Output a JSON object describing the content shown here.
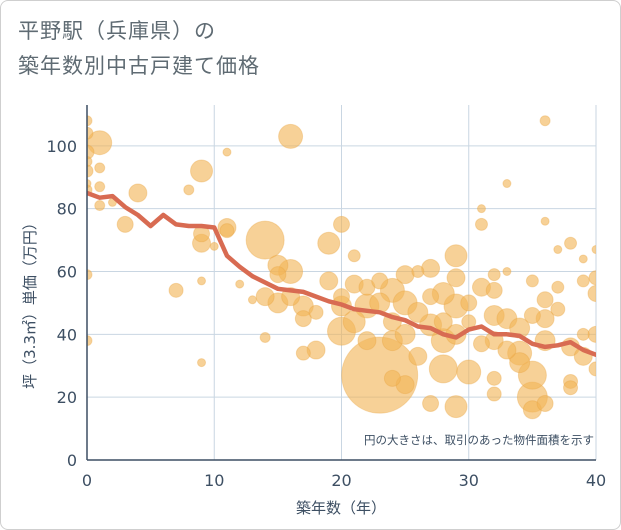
{
  "title_line1": "平野駅（兵庫県）の",
  "title_line2": "築年数別中古戸建て価格",
  "chart_data": {
    "type": "scatter",
    "title": "平野駅（兵庫県）の築年数別中古戸建て価格",
    "xlabel": "築年数（年）",
    "ylabel": "坪（3.3㎡）単価（万円）",
    "xlim": [
      0,
      40
    ],
    "ylim": [
      0,
      113
    ],
    "xticks": [
      0,
      10,
      20,
      30,
      40
    ],
    "yticks": [
      0,
      20,
      40,
      60,
      80,
      100
    ],
    "annotation": "円の大きさは、取引のあった物件面積を示す",
    "colors": {
      "bubble": "#f2b457",
      "trend": "#d86b52",
      "axis": "#3d4f63",
      "grid": "#c9d6e2"
    },
    "trend": {
      "x": [
        0,
        1,
        2,
        3,
        4,
        5,
        6,
        7,
        8,
        9,
        10,
        11,
        12,
        13,
        14,
        15,
        16,
        17,
        18,
        19,
        20,
        21,
        22,
        23,
        24,
        25,
        26,
        27,
        28,
        29,
        30,
        31,
        32,
        33,
        34,
        35,
        36,
        37,
        38,
        39,
        40
      ],
      "y": [
        85,
        83.5,
        84,
        80.5,
        78,
        74.5,
        78,
        75,
        74.5,
        74.5,
        74,
        65,
        61.5,
        58.5,
        56.5,
        54.5,
        54,
        53.5,
        52,
        50.5,
        49.5,
        48,
        47.5,
        47,
        45.5,
        44.5,
        42.5,
        42,
        40,
        39,
        41.5,
        42.5,
        40,
        40,
        39.5,
        37,
        36,
        36.5,
        37.5,
        35,
        33.5
      ]
    },
    "points": [
      {
        "x": 0,
        "y": 108,
        "r": 5
      },
      {
        "x": 0,
        "y": 104,
        "r": 6
      },
      {
        "x": 0,
        "y": 98,
        "r": 7
      },
      {
        "x": 0,
        "y": 95,
        "r": 5
      },
      {
        "x": 0,
        "y": 92,
        "r": 6
      },
      {
        "x": 0,
        "y": 88,
        "r": 4
      },
      {
        "x": 0,
        "y": 86,
        "r": 5
      },
      {
        "x": 0,
        "y": 59,
        "r": 5
      },
      {
        "x": 0,
        "y": 38,
        "r": 5
      },
      {
        "x": 1,
        "y": 101,
        "r": 12
      },
      {
        "x": 1,
        "y": 93,
        "r": 5
      },
      {
        "x": 1,
        "y": 87,
        "r": 5
      },
      {
        "x": 1,
        "y": 81,
        "r": 5
      },
      {
        "x": 2,
        "y": 82,
        "r": 4
      },
      {
        "x": 3,
        "y": 75,
        "r": 8
      },
      {
        "x": 4,
        "y": 85,
        "r": 9
      },
      {
        "x": 7,
        "y": 54,
        "r": 7
      },
      {
        "x": 8,
        "y": 86,
        "r": 5
      },
      {
        "x": 9,
        "y": 92,
        "r": 11
      },
      {
        "x": 9,
        "y": 72,
        "r": 8
      },
      {
        "x": 9,
        "y": 69,
        "r": 9
      },
      {
        "x": 9,
        "y": 57,
        "r": 4
      },
      {
        "x": 9,
        "y": 31,
        "r": 4
      },
      {
        "x": 10,
        "y": 68,
        "r": 4
      },
      {
        "x": 11,
        "y": 98,
        "r": 4
      },
      {
        "x": 11,
        "y": 74,
        "r": 9
      },
      {
        "x": 11,
        "y": 73,
        "r": 7
      },
      {
        "x": 12,
        "y": 56,
        "r": 4
      },
      {
        "x": 13,
        "y": 51,
        "r": 4
      },
      {
        "x": 14,
        "y": 70,
        "r": 19
      },
      {
        "x": 14,
        "y": 52,
        "r": 9
      },
      {
        "x": 14,
        "y": 39,
        "r": 5
      },
      {
        "x": 15,
        "y": 62,
        "r": 10
      },
      {
        "x": 15,
        "y": 59,
        "r": 8
      },
      {
        "x": 15,
        "y": 50,
        "r": 10
      },
      {
        "x": 16,
        "y": 103,
        "r": 12
      },
      {
        "x": 16,
        "y": 60,
        "r": 12
      },
      {
        "x": 16,
        "y": 52,
        "r": 9
      },
      {
        "x": 17,
        "y": 49,
        "r": 10
      },
      {
        "x": 17,
        "y": 45,
        "r": 8
      },
      {
        "x": 17,
        "y": 34,
        "r": 7
      },
      {
        "x": 18,
        "y": 47,
        "r": 7
      },
      {
        "x": 18,
        "y": 35,
        "r": 9
      },
      {
        "x": 19,
        "y": 69,
        "r": 11
      },
      {
        "x": 19,
        "y": 57,
        "r": 9
      },
      {
        "x": 20,
        "y": 75,
        "r": 8
      },
      {
        "x": 20,
        "y": 52,
        "r": 8
      },
      {
        "x": 20,
        "y": 49,
        "r": 10
      },
      {
        "x": 20,
        "y": 41,
        "r": 14
      },
      {
        "x": 21,
        "y": 65,
        "r": 6
      },
      {
        "x": 21,
        "y": 56,
        "r": 9
      },
      {
        "x": 21,
        "y": 44,
        "r": 11
      },
      {
        "x": 22,
        "y": 55,
        "r": 8
      },
      {
        "x": 22,
        "y": 49,
        "r": 12
      },
      {
        "x": 22,
        "y": 38,
        "r": 9
      },
      {
        "x": 23,
        "y": 27,
        "r": 38
      },
      {
        "x": 23,
        "y": 57,
        "r": 8
      },
      {
        "x": 23,
        "y": 50,
        "r": 10
      },
      {
        "x": 24,
        "y": 54,
        "r": 12
      },
      {
        "x": 24,
        "y": 44,
        "r": 9
      },
      {
        "x": 24,
        "y": 38,
        "r": 10
      },
      {
        "x": 24,
        "y": 26,
        "r": 8
      },
      {
        "x": 25,
        "y": 59,
        "r": 9
      },
      {
        "x": 25,
        "y": 50,
        "r": 12
      },
      {
        "x": 25,
        "y": 40,
        "r": 10
      },
      {
        "x": 25,
        "y": 24,
        "r": 9
      },
      {
        "x": 26,
        "y": 60,
        "r": 6
      },
      {
        "x": 26,
        "y": 47,
        "r": 10
      },
      {
        "x": 26,
        "y": 33,
        "r": 9
      },
      {
        "x": 27,
        "y": 61,
        "r": 9
      },
      {
        "x": 27,
        "y": 52,
        "r": 8
      },
      {
        "x": 27,
        "y": 43,
        "r": 11
      },
      {
        "x": 27,
        "y": 18,
        "r": 8
      },
      {
        "x": 28,
        "y": 53,
        "r": 11
      },
      {
        "x": 28,
        "y": 44,
        "r": 9
      },
      {
        "x": 28,
        "y": 38,
        "r": 12
      },
      {
        "x": 28,
        "y": 29,
        "r": 14
      },
      {
        "x": 29,
        "y": 65,
        "r": 11
      },
      {
        "x": 29,
        "y": 58,
        "r": 9
      },
      {
        "x": 29,
        "y": 49,
        "r": 12
      },
      {
        "x": 29,
        "y": 40,
        "r": 10
      },
      {
        "x": 29,
        "y": 17,
        "r": 11
      },
      {
        "x": 30,
        "y": 50,
        "r": 8
      },
      {
        "x": 30,
        "y": 44,
        "r": 7
      },
      {
        "x": 30,
        "y": 28,
        "r": 12
      },
      {
        "x": 31,
        "y": 80,
        "r": 4
      },
      {
        "x": 31,
        "y": 75,
        "r": 6
      },
      {
        "x": 31,
        "y": 55,
        "r": 9
      },
      {
        "x": 31,
        "y": 37,
        "r": 8
      },
      {
        "x": 32,
        "y": 59,
        "r": 6
      },
      {
        "x": 32,
        "y": 54,
        "r": 8
      },
      {
        "x": 32,
        "y": 46,
        "r": 10
      },
      {
        "x": 32,
        "y": 38,
        "r": 9
      },
      {
        "x": 32,
        "y": 26,
        "r": 7
      },
      {
        "x": 32,
        "y": 21,
        "r": 7
      },
      {
        "x": 33,
        "y": 88,
        "r": 4
      },
      {
        "x": 33,
        "y": 60,
        "r": 4
      },
      {
        "x": 33,
        "y": 45,
        "r": 10
      },
      {
        "x": 33,
        "y": 35,
        "r": 9
      },
      {
        "x": 34,
        "y": 42,
        "r": 10
      },
      {
        "x": 34,
        "y": 34,
        "r": 12
      },
      {
        "x": 34,
        "y": 31,
        "r": 10
      },
      {
        "x": 35,
        "y": 57,
        "r": 6
      },
      {
        "x": 35,
        "y": 46,
        "r": 8
      },
      {
        "x": 35,
        "y": 27,
        "r": 14
      },
      {
        "x": 35,
        "y": 20,
        "r": 15
      },
      {
        "x": 35,
        "y": 16,
        "r": 9
      },
      {
        "x": 36,
        "y": 108,
        "r": 5
      },
      {
        "x": 36,
        "y": 76,
        "r": 4
      },
      {
        "x": 36,
        "y": 51,
        "r": 8
      },
      {
        "x": 36,
        "y": 45,
        "r": 9
      },
      {
        "x": 36,
        "y": 38,
        "r": 10
      },
      {
        "x": 36,
        "y": 18,
        "r": 8
      },
      {
        "x": 37,
        "y": 67,
        "r": 4
      },
      {
        "x": 37,
        "y": 55,
        "r": 6
      },
      {
        "x": 37,
        "y": 48,
        "r": 7
      },
      {
        "x": 38,
        "y": 69,
        "r": 6
      },
      {
        "x": 38,
        "y": 36,
        "r": 9
      },
      {
        "x": 38,
        "y": 25,
        "r": 7
      },
      {
        "x": 38,
        "y": 23,
        "r": 7
      },
      {
        "x": 39,
        "y": 57,
        "r": 6
      },
      {
        "x": 39,
        "y": 40,
        "r": 6
      },
      {
        "x": 39,
        "y": 33,
        "r": 9
      },
      {
        "x": 39,
        "y": 64,
        "r": 4
      },
      {
        "x": 40,
        "y": 67,
        "r": 4
      },
      {
        "x": 40,
        "y": 58,
        "r": 7
      },
      {
        "x": 40,
        "y": 53,
        "r": 8
      },
      {
        "x": 40,
        "y": 40,
        "r": 8
      },
      {
        "x": 40,
        "y": 29,
        "r": 7
      }
    ]
  }
}
